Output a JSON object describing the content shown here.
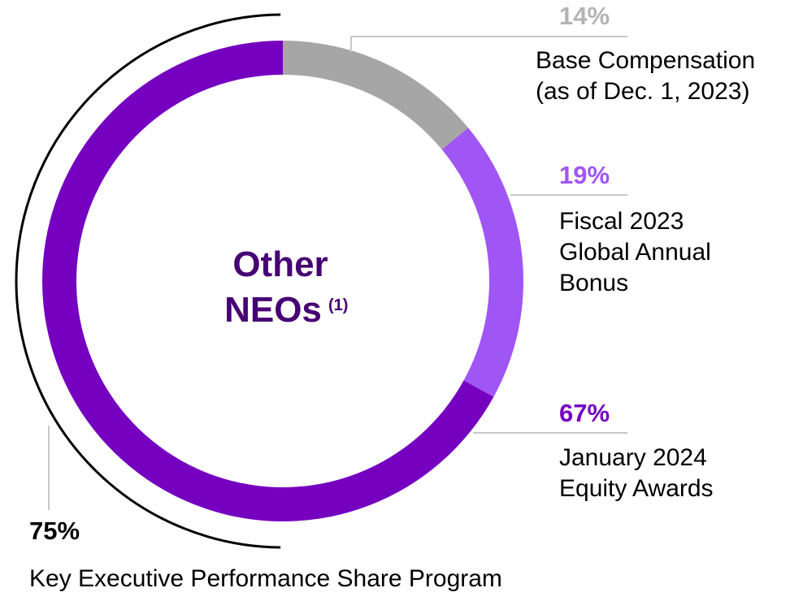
{
  "chart_data": {
    "type": "pie",
    "subtype": "donut",
    "title": "Other NEOs",
    "title_line1": "Other",
    "title_line2": "NEOs",
    "title_footnote": "(1)",
    "slices": [
      {
        "name": "base",
        "label": "Base Compensation (as of Dec. 1, 2023)",
        "label_lines": [
          "Base Compensation",
          "(as of Dec. 1, 2023)"
        ],
        "value": 14,
        "percent_label": "14%",
        "color": "#a6a6a6",
        "pct_color": "#b3b3b3"
      },
      {
        "name": "bonus",
        "label": "Fiscal 2023 Global Annual Bonus",
        "label_lines": [
          "Fiscal 2023",
          "Global Annual",
          "Bonus"
        ],
        "value": 19,
        "percent_label": "19%",
        "color": "#a055f5",
        "pct_color": "#a055f5"
      },
      {
        "name": "equity",
        "label": "January 2024 Equity Awards",
        "label_lines": [
          "January 2024",
          "Equity Awards"
        ],
        "value": 67,
        "percent_label": "67%",
        "color": "#7500c0",
        "pct_color": "#7500c0"
      }
    ],
    "bracket": {
      "value": 75,
      "percent_label": "75%",
      "label": "Key Executive Performance Share Program"
    },
    "title_color": "#460073",
    "text_color": "#000000",
    "leader_color": "#c8c8c8"
  }
}
